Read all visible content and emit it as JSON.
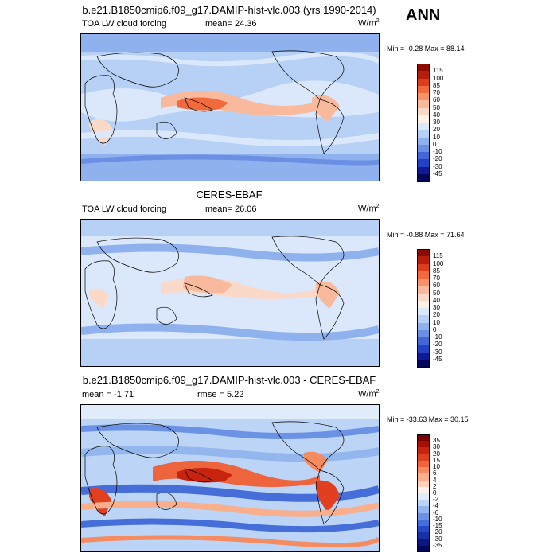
{
  "ann_label": "ANN",
  "panels": [
    {
      "title": "b.e21.B1850cmip6.f09_g17.DAMIP-hist-vlc.003 (yrs 1990-2014)",
      "left_label": "TOA LW cloud forcing",
      "mid_label": "mean=  24.36",
      "right_unit": "W/m",
      "right_unit_sup": "2",
      "minmax": "Min =  -0.28 Max =  88.14",
      "levels": [
        "115",
        "100",
        "85",
        "70",
        "60",
        "50",
        "40",
        "30",
        "20",
        "10",
        "0",
        "-10",
        "-20",
        "-30",
        "-45"
      ],
      "colors": [
        "#8c0a00",
        "#b81c0c",
        "#dd3d1d",
        "#f06a3c",
        "#f5936b",
        "#f9b99c",
        "#fbd9c8",
        "#fdf0e7",
        "#dbe8fb",
        "#b7d0f6",
        "#8fb2ee",
        "#6a8fe3",
        "#4367d8",
        "#2241c4",
        "#101a96",
        "#03075a"
      ]
    },
    {
      "title": "CERES-EBAF",
      "left_label": "TOA LW cloud forcing",
      "mid_label": "mean=  26.06",
      "right_unit": "W/m",
      "right_unit_sup": "2",
      "minmax": "Min =  -0.88 Max =  71.64",
      "levels": [
        "115",
        "100",
        "85",
        "70",
        "60",
        "50",
        "40",
        "30",
        "20",
        "10",
        "0",
        "-10",
        "-20",
        "-30",
        "-45"
      ],
      "colors": [
        "#8c0a00",
        "#b81c0c",
        "#dd3d1d",
        "#f06a3c",
        "#f5936b",
        "#f9b99c",
        "#fbd9c8",
        "#fdf0e7",
        "#dbe8fb",
        "#b7d0f6",
        "#8fb2ee",
        "#6a8fe3",
        "#4367d8",
        "#2241c4",
        "#101a96",
        "#03075a"
      ]
    },
    {
      "title": "b.e21.B1850cmip6.f09_g17.DAMIP-hist-vlc.003 - CERES-EBAF",
      "left_label": "mean =  -1.71",
      "mid_label": "rmse =   5.22",
      "right_unit": "W/m",
      "right_unit_sup": "2",
      "minmax": "Min = -33.63 Max =  30.15",
      "levels": [
        "35",
        "30",
        "20",
        "15",
        "10",
        "6",
        "4",
        "2",
        "0",
        "-2",
        "-4",
        "-6",
        "-10",
        "-15",
        "-20",
        "-30",
        "-35"
      ],
      "colors": [
        "#7a0000",
        "#a50f06",
        "#c8230f",
        "#e0401f",
        "#ee643c",
        "#f58b60",
        "#f9ae8c",
        "#fcd2bd",
        "#fdf1e9",
        "#e1ecfb",
        "#bcd4f6",
        "#93b6ee",
        "#6b92e4",
        "#456ed8",
        "#2549c4",
        "#1a2fa6",
        "#0d1680",
        "#03075a"
      ]
    }
  ]
}
